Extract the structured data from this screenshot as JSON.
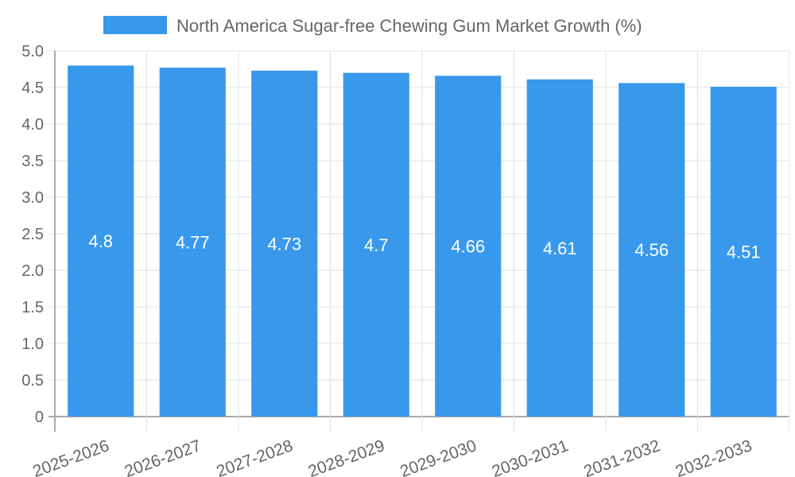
{
  "chart_data": {
    "type": "bar",
    "title": "",
    "legend": [
      {
        "label": "North America Sugar-free Chewing Gum Market Growth (%)",
        "color": "#3899ec"
      }
    ],
    "legend_placement": "top",
    "categories": [
      "2025-2026",
      "2026-2027",
      "2027-2028",
      "2028-2029",
      "2029-2030",
      "2030-2031",
      "2031-2032",
      "2032-2033"
    ],
    "values": [
      4.8,
      4.77,
      4.73,
      4.7,
      4.66,
      4.61,
      4.56,
      4.51
    ],
    "data_labels": [
      "4.8",
      "4.77",
      "4.73",
      "4.7",
      "4.66",
      "4.61",
      "4.56",
      "4.51"
    ],
    "yticks": [
      "0",
      "0.5",
      "1.0",
      "1.5",
      "2.0",
      "2.5",
      "3.0",
      "3.5",
      "4.0",
      "4.5",
      "5.0"
    ],
    "ylim": [
      0,
      5
    ],
    "xlabel": "",
    "ylabel": "",
    "grid": true,
    "bar_color": "#3899ec"
  }
}
